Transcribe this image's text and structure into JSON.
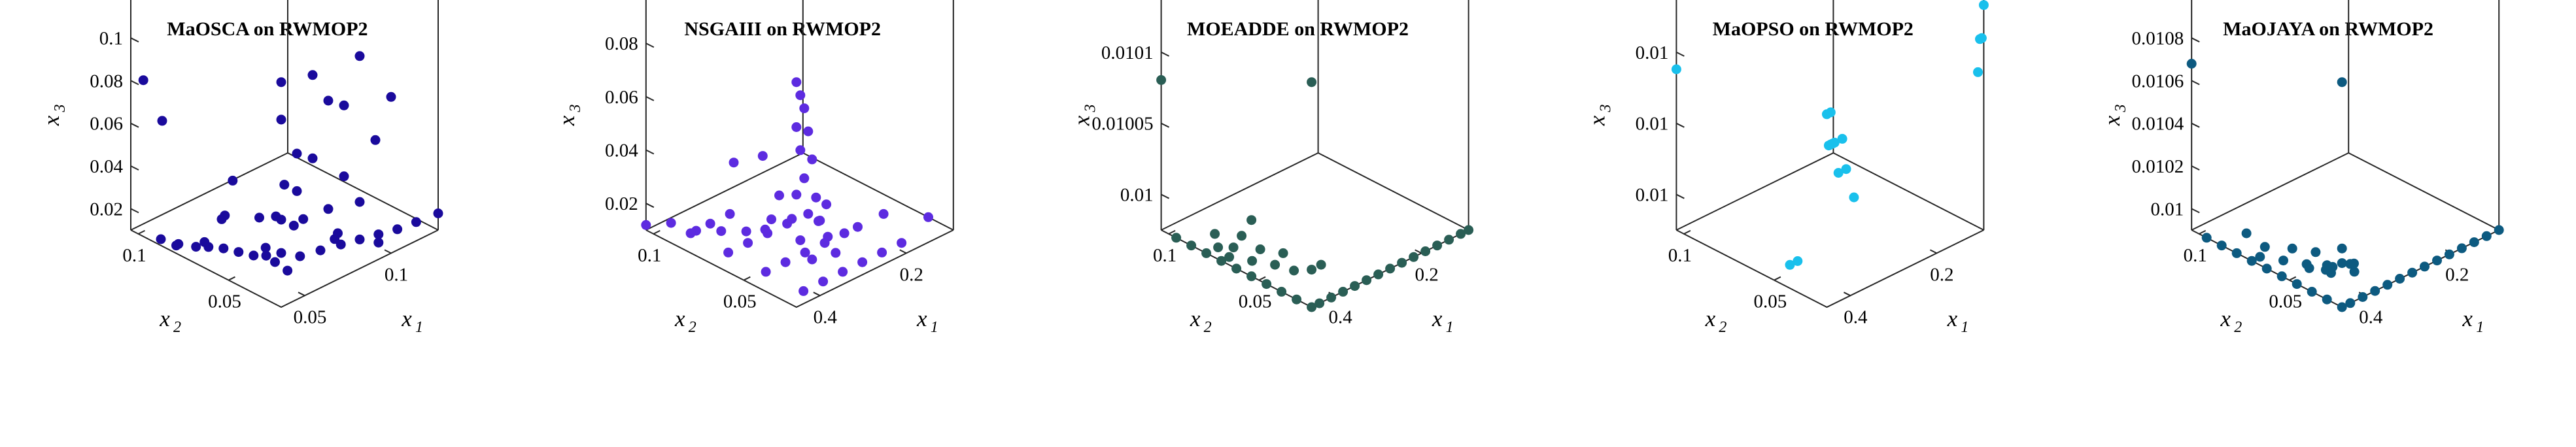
{
  "chart_data": [
    {
      "type": "scatter",
      "title": "MaOSCA on RWMOP2",
      "color": "#1a0a9c",
      "xlabel": "x",
      "xlabel_sub": "1",
      "ylabel": "x",
      "ylabel_sub": "2",
      "zlabel": "x",
      "zlabel_sub": "3",
      "x_ticks": [
        "0.05",
        "0.1"
      ],
      "y_ticks": [
        "0.05",
        "0.1"
      ],
      "z_ticks": [
        "0.02",
        "0.04",
        "0.06",
        "0.08",
        "0.1"
      ],
      "points": [
        [
          0.0,
          0.0,
          0.118
        ],
        [
          0.02,
          0.0,
          0.114
        ],
        [
          0.05,
          0.0,
          0.112
        ],
        [
          0.0,
          0.0,
          0.1
        ],
        [
          0.03,
          0.0,
          0.098
        ],
        [
          0.04,
          0.0,
          0.092
        ],
        [
          0.07,
          0.0,
          0.085
        ],
        [
          0.01,
          0.0,
          0.08
        ],
        [
          0.02,
          0.0,
          0.074
        ],
        [
          0.06,
          0.0,
          0.068
        ],
        [
          0.01,
          0.0,
          0.062
        ],
        [
          0.04,
          0.0,
          0.058
        ],
        [
          0.0,
          0.0,
          0.052
        ],
        [
          0.03,
          0.0,
          0.046
        ],
        [
          0.05,
          0.0,
          0.042
        ],
        [
          0.0,
          0.0,
          0.036
        ],
        [
          0.0,
          0.012,
          0.031
        ],
        [
          0.0,
          0.022,
          0.028
        ],
        [
          0.0,
          0.034,
          0.026
        ],
        [
          0.0,
          0.046,
          0.024
        ],
        [
          0.0,
          0.058,
          0.021
        ],
        [
          0.0,
          0.068,
          0.018
        ],
        [
          0.0,
          0.082,
          0.015
        ],
        [
          0.0,
          0.096,
          0.013
        ],
        [
          0.012,
          0.0,
          0.03
        ],
        [
          0.025,
          0.0,
          0.028
        ],
        [
          0.038,
          0.0,
          0.026
        ],
        [
          0.05,
          0.0,
          0.024
        ],
        [
          0.062,
          0.0,
          0.022
        ],
        [
          0.074,
          0.0,
          0.02
        ],
        [
          0.086,
          0.0,
          0.019
        ],
        [
          0.1,
          0.0,
          0.018
        ],
        [
          0.012,
          0.01,
          0.02
        ],
        [
          0.02,
          0.03,
          0.015
        ],
        [
          0.03,
          0.05,
          0.012
        ],
        [
          0.01,
          0.06,
          0.03
        ],
        [
          0.05,
          0.02,
          0.018
        ],
        [
          0.04,
          0.04,
          0.022
        ],
        [
          0.015,
          0.08,
          0.011
        ],
        [
          0.005,
          0.09,
          0.01
        ],
        [
          0.07,
          0.01,
          0.012
        ],
        [
          0.02,
          0.07,
          0.025
        ],
        [
          0.0,
          0.11,
          0.085
        ],
        [
          0.02,
          0.12,
          0.055
        ],
        [
          0.01,
          0.03,
          0.04
        ],
        [
          0.03,
          0.02,
          0.035
        ],
        [
          0.005,
          0.045,
          0.055
        ],
        [
          0.06,
          0.03,
          0.014
        ],
        [
          0.003,
          0.008,
          0.05
        ],
        [
          0.006,
          0.005,
          0.065
        ]
      ]
    },
    {
      "type": "scatter",
      "title": "NSGAIII on RWMOP2",
      "color": "#5d2be0",
      "xlabel": "x",
      "xlabel_sub": "1",
      "ylabel": "x",
      "ylabel_sub": "2",
      "zlabel": "x",
      "zlabel_sub": "3",
      "x_ticks": [
        "0.4",
        "0.2"
      ],
      "y_ticks": [
        "0.05",
        "0.1"
      ],
      "z_ticks": [
        "0.02",
        "0.04",
        "0.06",
        "0.08"
      ],
      "points": [
        [
          0.0,
          0.0,
          0.1
        ],
        [
          0.01,
          0.0,
          0.094
        ],
        [
          0.02,
          0.0,
          0.088
        ],
        [
          0.0,
          0.0,
          0.082
        ],
        [
          0.03,
          0.0,
          0.078
        ],
        [
          0.01,
          0.0,
          0.072
        ],
        [
          0.04,
          0.0,
          0.066
        ],
        [
          0.02,
          0.0,
          0.06
        ],
        [
          0.0,
          0.0,
          0.055
        ],
        [
          0.05,
          0.0,
          0.05
        ],
        [
          0.03,
          0.0,
          0.045
        ],
        [
          0.06,
          0.0,
          0.04
        ],
        [
          0.01,
          0.0,
          0.036
        ],
        [
          0.08,
          0.0,
          0.032
        ],
        [
          0.04,
          0.0,
          0.026
        ],
        [
          0.1,
          0.0,
          0.024
        ],
        [
          0.0,
          0.02,
          0.04
        ],
        [
          0.0,
          0.04,
          0.03
        ],
        [
          0.0,
          0.06,
          0.025
        ],
        [
          0.0,
          0.08,
          0.02
        ],
        [
          0.0,
          0.1,
          0.018
        ],
        [
          0.0,
          0.12,
          0.012
        ],
        [
          0.05,
          0.01,
          0.01
        ],
        [
          0.1,
          0.01,
          0.01
        ],
        [
          0.15,
          0.01,
          0.01
        ],
        [
          0.2,
          0.01,
          0.01
        ],
        [
          0.25,
          0.01,
          0.01
        ],
        [
          0.05,
          0.04,
          0.01
        ],
        [
          0.1,
          0.04,
          0.01
        ],
        [
          0.15,
          0.04,
          0.01
        ],
        [
          0.2,
          0.04,
          0.01
        ],
        [
          0.25,
          0.04,
          0.01
        ],
        [
          0.05,
          0.07,
          0.01
        ],
        [
          0.1,
          0.07,
          0.01
        ],
        [
          0.15,
          0.07,
          0.01
        ],
        [
          0.2,
          0.07,
          0.01
        ],
        [
          0.05,
          0.1,
          0.01
        ],
        [
          0.1,
          0.1,
          0.01
        ],
        [
          0.15,
          0.1,
          0.01
        ],
        [
          0.3,
          0.01,
          0.01
        ],
        [
          0.35,
          0.04,
          0.01
        ],
        [
          0.3,
          0.07,
          0.01
        ],
        [
          0.4,
          0.02,
          0.01
        ],
        [
          0.0,
          0.05,
          0.055
        ],
        [
          0.02,
          0.02,
          0.048
        ],
        [
          0.01,
          0.03,
          0.062
        ],
        [
          0.12,
          0.02,
          0.03
        ],
        [
          0.08,
          0.05,
          0.022
        ],
        [
          0.18,
          0.06,
          0.016
        ],
        [
          0.22,
          0.02,
          0.02
        ]
      ]
    },
    {
      "type": "scatter",
      "title": "MOEADDE on RWMOP2",
      "color": "#2a5e55",
      "xlabel": "x",
      "xlabel_sub": "1",
      "ylabel": "x",
      "ylabel_sub": "2",
      "zlabel": "x",
      "zlabel_sub": "3",
      "x_ticks": [
        "0.4",
        "0.2"
      ],
      "y_ticks": [
        "0.05",
        "0.1"
      ],
      "z_ticks": [
        "0.01",
        "0.01005",
        "0.0101"
      ],
      "points": [
        [
          0.0,
          0.0,
          0.01012
        ],
        [
          0.0,
          0.1,
          0.01008
        ],
        [
          0.0,
          0.0,
          0.01002
        ],
        [
          0.0,
          0.04,
          0.01003
        ],
        [
          0.0,
          0.0,
          0.01
        ],
        [
          0.02,
          0.0,
          0.01
        ],
        [
          0.05,
          0.0,
          0.01
        ],
        [
          0.08,
          0.0,
          0.01
        ],
        [
          0.11,
          0.0,
          0.01
        ],
        [
          0.14,
          0.0,
          0.01
        ],
        [
          0.17,
          0.0,
          0.01
        ],
        [
          0.2,
          0.0,
          0.01
        ],
        [
          0.23,
          0.0,
          0.01
        ],
        [
          0.26,
          0.0,
          0.01
        ],
        [
          0.29,
          0.0,
          0.01
        ],
        [
          0.32,
          0.0,
          0.01
        ],
        [
          0.35,
          0.0,
          0.01
        ],
        [
          0.38,
          0.0,
          0.01
        ],
        [
          0.4,
          0.0,
          0.01
        ],
        [
          0.0,
          0.01,
          0.01
        ],
        [
          0.0,
          0.02,
          0.01
        ],
        [
          0.0,
          0.03,
          0.01
        ],
        [
          0.0,
          0.04,
          0.01
        ],
        [
          0.0,
          0.05,
          0.01
        ],
        [
          0.0,
          0.06,
          0.01
        ],
        [
          0.0,
          0.07,
          0.01
        ],
        [
          0.0,
          0.08,
          0.01
        ],
        [
          0.0,
          0.09,
          0.01
        ],
        [
          0.02,
          0.06,
          0.01
        ],
        [
          0.04,
          0.05,
          0.01
        ],
        [
          0.06,
          0.04,
          0.01
        ],
        [
          0.03,
          0.07,
          0.01
        ],
        [
          0.05,
          0.065,
          0.01
        ],
        [
          0.08,
          0.055,
          0.01
        ],
        [
          0.1,
          0.045,
          0.01
        ],
        [
          0.07,
          0.03,
          0.01
        ],
        [
          0.12,
          0.025,
          0.01
        ],
        [
          0.06,
          0.08,
          0.01
        ],
        [
          0.09,
          0.07,
          0.01
        ]
      ]
    },
    {
      "type": "scatter",
      "title": "MaOPSO on RWMOP2",
      "color": "#19c0ec",
      "xlabel": "x",
      "xlabel_sub": "1",
      "ylabel": "x",
      "ylabel_sub": "2",
      "zlabel": "x",
      "zlabel_sub": "3",
      "x_ticks": [
        "0.4",
        "0.2"
      ],
      "y_ticks": [
        "0.05",
        "0.1"
      ],
      "z_ticks": [
        "0.01",
        "0.01",
        "0.01"
      ],
      "points": [
        [
          0.0,
          0.0,
          0.01008
        ],
        [
          0.005,
          0.0,
          0.01007
        ],
        [
          0.01,
          0.0,
          0.01007
        ],
        [
          0.02,
          0.0,
          0.01007
        ],
        [
          0.03,
          0.0,
          0.01006
        ],
        [
          0.04,
          0.0,
          0.01007
        ],
        [
          0.05,
          0.0,
          0.01006
        ],
        [
          0.07,
          0.0,
          0.01005
        ],
        [
          0.01,
          0.0,
          0.01008
        ],
        [
          0.015,
          0.0,
          0.01007
        ],
        [
          0.4,
          0.0,
          0.01008
        ],
        [
          0.395,
          0.0,
          0.01008
        ],
        [
          0.405,
          0.0,
          0.01009
        ],
        [
          0.39,
          0.0,
          0.01007
        ],
        [
          0.0,
          0.1,
          0.01007
        ],
        [
          0.06,
          0.04,
          0.01002
        ],
        [
          0.08,
          0.04,
          0.01002
        ]
      ]
    },
    {
      "type": "scatter",
      "title": "MaOJAYA on RWMOP2",
      "color": "#0d5a80",
      "xlabel": "x",
      "xlabel_sub": "1",
      "ylabel": "x",
      "ylabel_sub": "2",
      "zlabel": "x",
      "zlabel_sub": "3",
      "x_ticks": [
        "0.4",
        "0.2"
      ],
      "y_ticks": [
        "0.05",
        "0.1"
      ],
      "z_ticks": [
        "0.01",
        "0.0102",
        "0.0104",
        "0.0106",
        "0.0108"
      ],
      "points": [
        [
          0.0,
          0.0,
          0.01092
        ],
        [
          0.0,
          0.1,
          0.01068
        ],
        [
          0.0,
          0.0,
          0.01024
        ],
        [
          0.0,
          0.0,
          0.01018
        ],
        [
          0.02,
          0.0,
          0.01016
        ],
        [
          0.0,
          0.01,
          0.01014
        ],
        [
          0.03,
          0.0,
          0.01012
        ],
        [
          0.01,
          0.01,
          0.0101
        ],
        [
          0.0,
          0.0,
          0.01
        ],
        [
          0.02,
          0.0,
          0.01
        ],
        [
          0.05,
          0.0,
          0.01
        ],
        [
          0.08,
          0.0,
          0.01
        ],
        [
          0.11,
          0.0,
          0.01
        ],
        [
          0.14,
          0.0,
          0.01
        ],
        [
          0.17,
          0.0,
          0.01
        ],
        [
          0.2,
          0.0,
          0.01
        ],
        [
          0.23,
          0.0,
          0.01
        ],
        [
          0.26,
          0.0,
          0.01
        ],
        [
          0.29,
          0.0,
          0.01
        ],
        [
          0.32,
          0.0,
          0.01
        ],
        [
          0.35,
          0.0,
          0.01
        ],
        [
          0.38,
          0.0,
          0.01
        ],
        [
          0.0,
          0.01,
          0.01
        ],
        [
          0.0,
          0.02,
          0.01
        ],
        [
          0.0,
          0.03,
          0.01
        ],
        [
          0.0,
          0.04,
          0.01
        ],
        [
          0.0,
          0.05,
          0.01
        ],
        [
          0.0,
          0.06,
          0.01
        ],
        [
          0.0,
          0.07,
          0.01
        ],
        [
          0.0,
          0.08,
          0.01
        ],
        [
          0.0,
          0.09,
          0.01
        ],
        [
          0.02,
          0.06,
          0.01
        ],
        [
          0.04,
          0.05,
          0.01
        ],
        [
          0.06,
          0.04,
          0.01
        ],
        [
          0.05,
          0.065,
          0.01
        ],
        [
          0.08,
          0.055,
          0.01
        ],
        [
          0.1,
          0.045,
          0.01
        ],
        [
          0.07,
          0.03,
          0.01
        ],
        [
          0.06,
          0.08,
          0.01
        ],
        [
          0.12,
          0.025,
          0.01
        ],
        [
          0.03,
          0.03,
          0.01004
        ],
        [
          0.05,
          0.02,
          0.01006
        ]
      ]
    }
  ]
}
